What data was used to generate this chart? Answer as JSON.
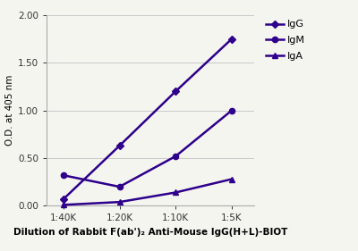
{
  "x_labels": [
    "1:40K",
    "1:20K",
    "1:10K",
    "1:5K"
  ],
  "x_values": [
    1,
    2,
    3,
    4
  ],
  "series": {
    "IgG": {
      "y": [
        0.07,
        0.63,
        1.2,
        1.75
      ],
      "color": "#2E008B",
      "marker": "D",
      "markersize": 4.5,
      "linewidth": 1.8
    },
    "IgM": {
      "y": [
        0.32,
        0.2,
        0.52,
        1.0
      ],
      "color": "#2E008B",
      "marker": "o",
      "markersize": 4.5,
      "linewidth": 1.8
    },
    "IgA": {
      "y": [
        0.01,
        0.04,
        0.14,
        0.28
      ],
      "color": "#2E008B",
      "marker": "^",
      "markersize": 4.5,
      "linewidth": 1.8
    }
  },
  "ylabel": "O.D. at 405 nm",
  "xlabel": "Dilution of Rabbit F(ab')₂ Anti-Mouse IgG(H+L)-BIOT",
  "ylim": [
    0.0,
    2.0
  ],
  "yticks": [
    0.0,
    0.5,
    1.0,
    1.5,
    2.0
  ],
  "ytick_labels": [
    "0.00",
    "0.50",
    "1.00",
    "1.50",
    "2.00"
  ],
  "background_color": "#f5f5f0",
  "grid_color": "#c8c8c8",
  "legend_order": [
    "IgG",
    "IgM",
    "IgA"
  ],
  "axis_label_fontsize": 7.5,
  "tick_fontsize": 7.5,
  "legend_fontsize": 8
}
